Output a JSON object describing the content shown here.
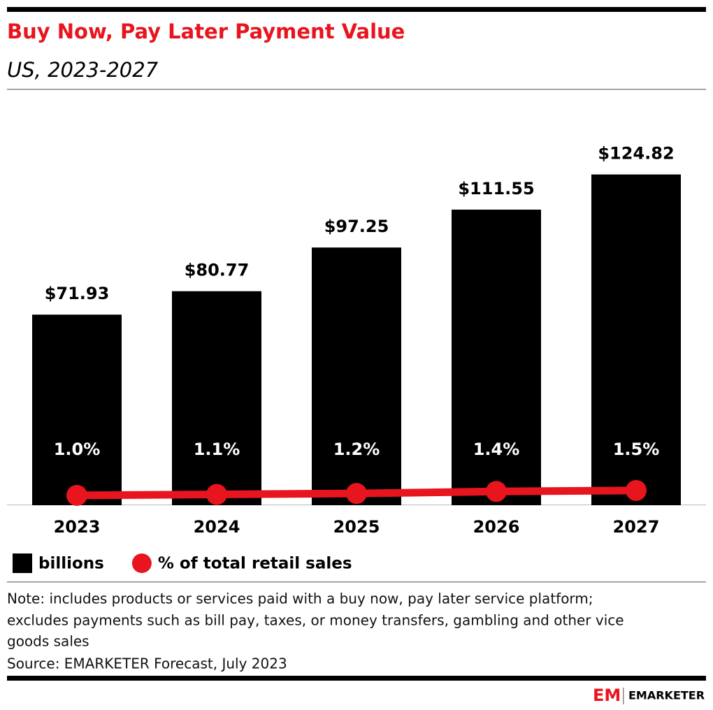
{
  "chart_data": {
    "type": "bar",
    "title": "Buy Now, Pay Later Payment Value",
    "subtitle": "US, 2023-2027",
    "categories": [
      "2023",
      "2024",
      "2025",
      "2026",
      "2027"
    ],
    "series": [
      {
        "name": "billions",
        "type": "bar",
        "color": "#000000",
        "values": [
          71.93,
          80.77,
          97.25,
          111.55,
          124.82
        ],
        "value_labels": [
          "$71.93",
          "$80.77",
          "$97.25",
          "$111.55",
          "$124.82"
        ]
      },
      {
        "name": "% of total retail sales",
        "type": "line",
        "axis": "y2",
        "color": "#e8141e",
        "values": [
          1.0,
          1.1,
          1.2,
          1.4,
          1.5
        ],
        "value_labels": [
          "1.0%",
          "1.1%",
          "1.2%",
          "1.4%",
          "1.5%"
        ]
      }
    ],
    "ylim": [
      0,
      130
    ],
    "y2lim": [
      0,
      35
    ],
    "note": [
      "Note: includes products or services paid with a buy now, pay later service platform;",
      "excludes payments such as bill pay, taxes, or money transfers, gambling and other vice",
      "goods sales"
    ],
    "source": "Source: EMARKETER Forecast, July 2023",
    "brand": {
      "mark": "EM",
      "name": "EMARKETER"
    }
  }
}
